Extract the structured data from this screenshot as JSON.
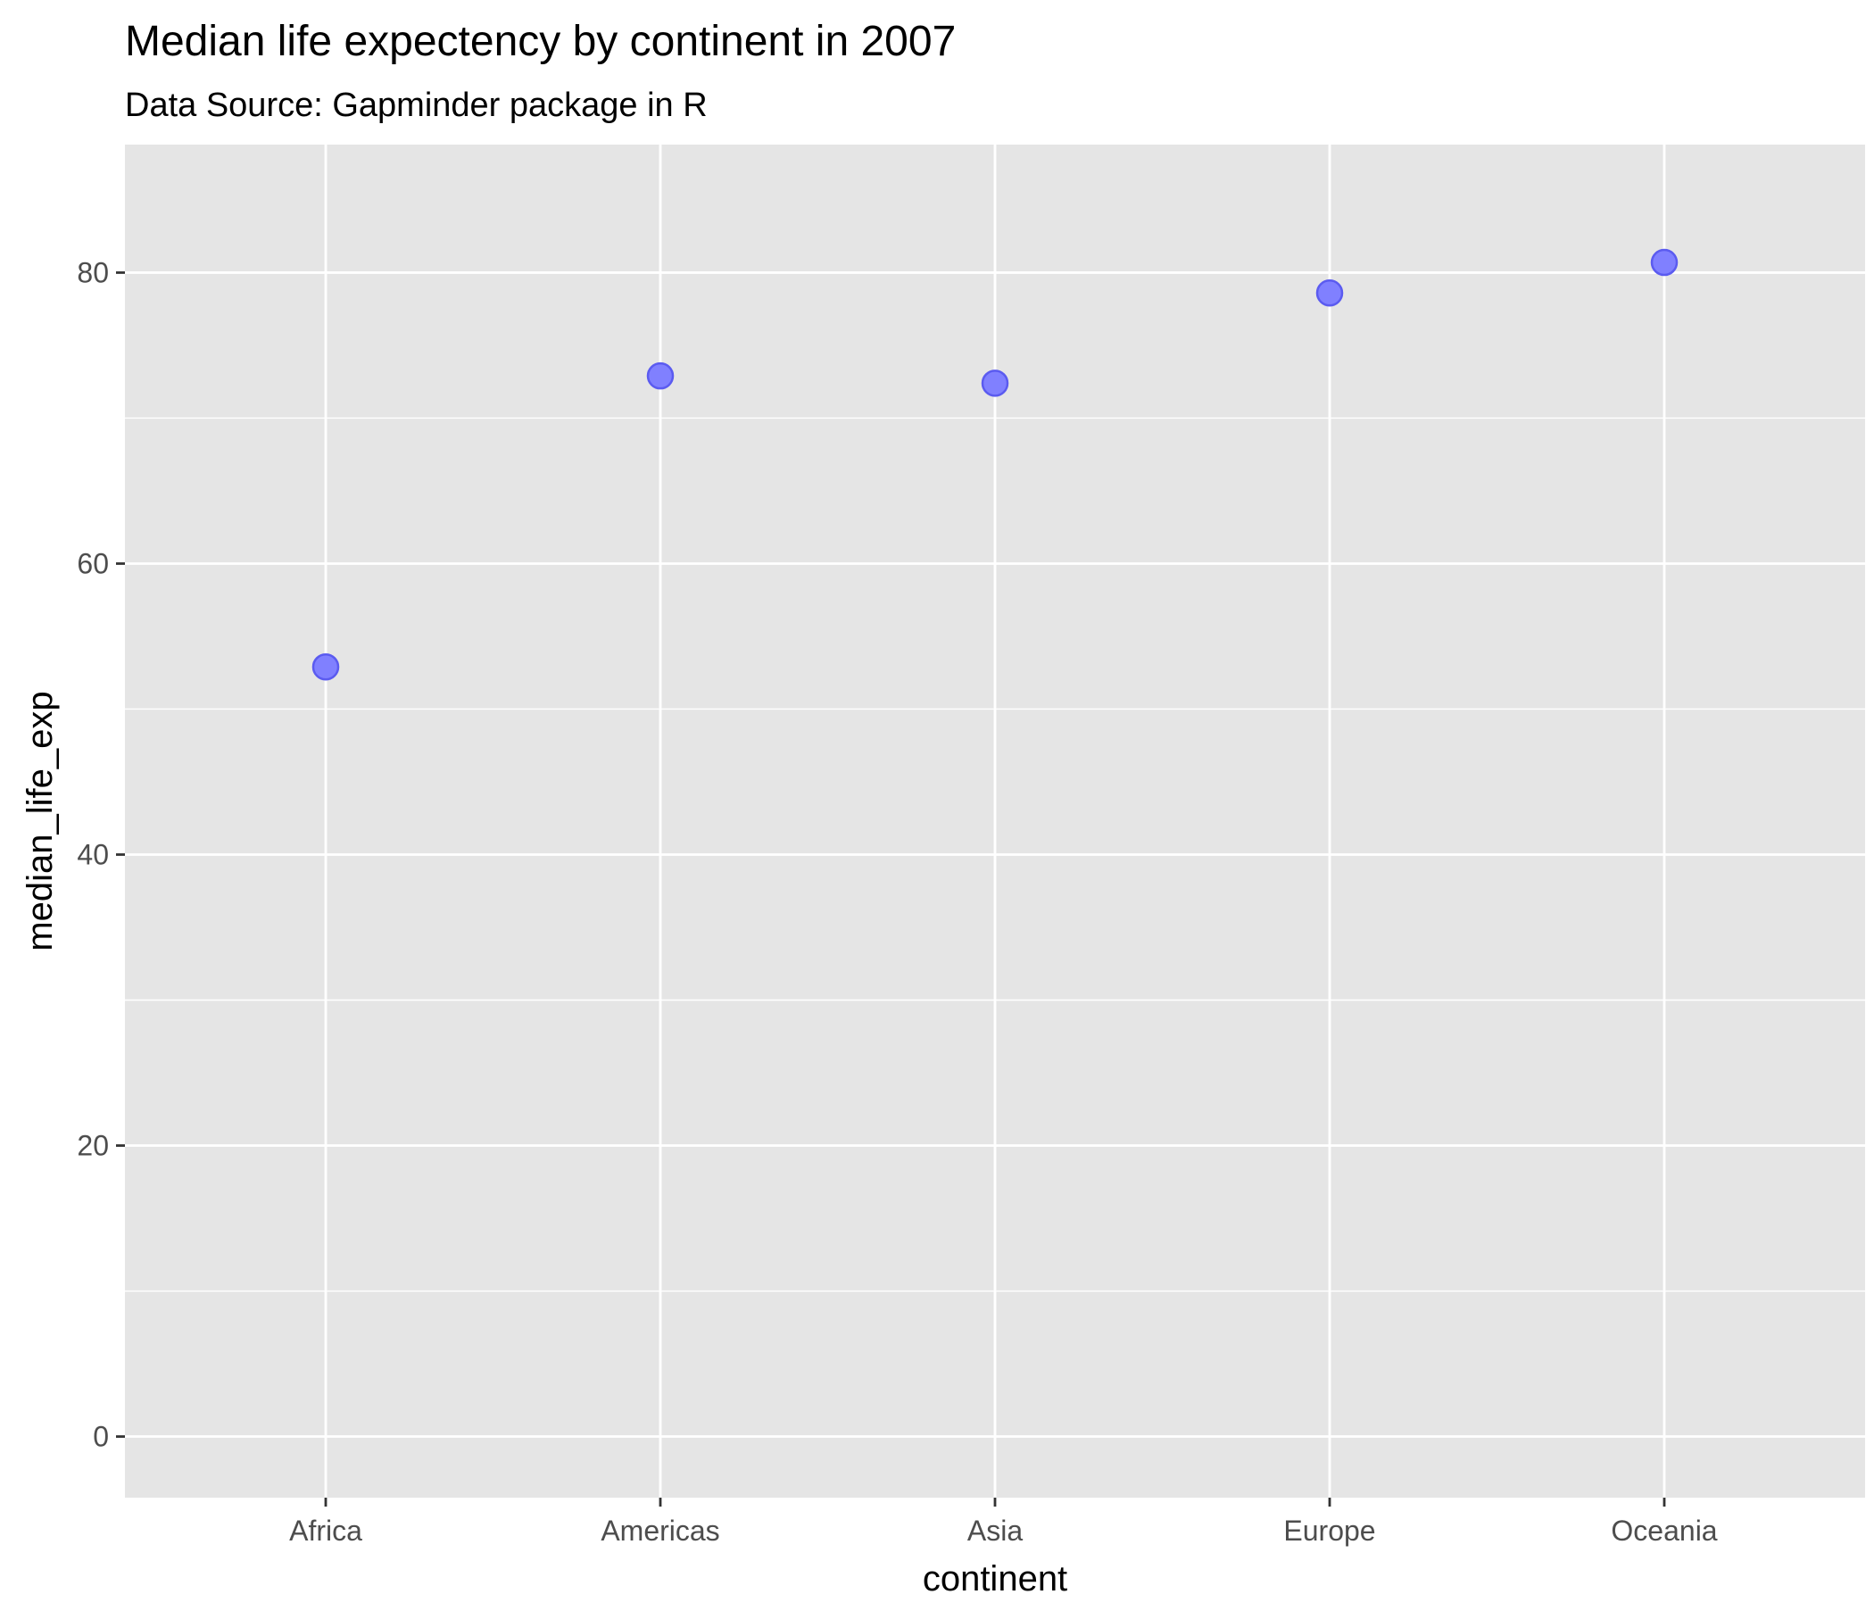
{
  "chart_data": {
    "type": "scatter",
    "title": "Median life expectency by continent in 2007",
    "subtitle": "Data Source: Gapminder package in R",
    "xlabel": "continent",
    "ylabel": "median_life_exp",
    "categories": [
      "Africa",
      "Americas",
      "Asia",
      "Europe",
      "Oceania"
    ],
    "values": [
      52.9,
      72.9,
      72.4,
      78.6,
      80.7
    ],
    "ylim": [
      -4.2,
      88.8
    ],
    "y_ticks": [
      0,
      20,
      40,
      60,
      80
    ],
    "y_tick_labels": [
      "0",
      "20",
      "40",
      "60",
      "80"
    ],
    "grid": true,
    "legend": "none",
    "colors": {
      "panel": "#e5e5e5",
      "grid": "#ffffff",
      "point_fill": "#8080ff",
      "point_stroke": "#5b5bf0",
      "tick": "#333333"
    }
  }
}
